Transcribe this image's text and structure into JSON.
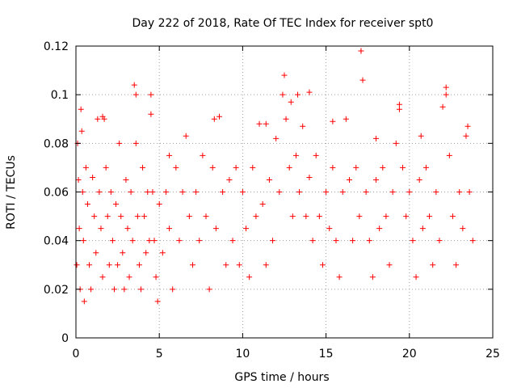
{
  "chart_data": {
    "type": "scatter",
    "title": "Day 222 of 2018, Rate Of TEC Index for receiver spt0",
    "xlabel": "GPS time / hours",
    "ylabel": "ROTI / TECUs",
    "xlim": [
      0,
      25
    ],
    "ylim": [
      0,
      0.12
    ],
    "xticks": [
      "0",
      "5",
      "10",
      "15",
      "20",
      "25"
    ],
    "yticks": [
      "0",
      "0.02",
      "0.04",
      "0.06",
      "0.08",
      "0.1",
      "0.12"
    ],
    "grid": true,
    "legend": "none",
    "marker": "+",
    "marker_color": "#ff0000",
    "series": [
      {
        "x": [
          0.05,
          0.1,
          0.15,
          0.2,
          0.25,
          0.3,
          0.35,
          0.4,
          0.45,
          0.5,
          0.6,
          0.7,
          0.8,
          0.9,
          1.0,
          1.1,
          1.2,
          1.3,
          1.4,
          1.5,
          1.6,
          1.7,
          1.8,
          1.9,
          2.0,
          2.1,
          2.2,
          2.3,
          2.4,
          2.5,
          2.6,
          2.7,
          2.8,
          2.9,
          3.0,
          3.1,
          3.2,
          3.3,
          3.4,
          3.5,
          3.6,
          3.7,
          3.8,
          3.9,
          4.0,
          4.1,
          4.2,
          4.3,
          4.4,
          4.5,
          4.6,
          4.7,
          4.8,
          4.9,
          5.0,
          5.2,
          5.4,
          5.6,
          5.8,
          6.0,
          6.2,
          6.4,
          6.6,
          6.8,
          7.0,
          7.2,
          7.4,
          7.6,
          7.8,
          8.0,
          8.2,
          8.4,
          8.6,
          8.8,
          9.0,
          9.2,
          9.4,
          9.6,
          9.8,
          10.0,
          10.2,
          10.4,
          10.6,
          10.8,
          11.0,
          11.2,
          11.4,
          11.6,
          11.8,
          12.0,
          12.2,
          12.4,
          12.6,
          12.8,
          13.0,
          13.2,
          13.4,
          13.6,
          13.8,
          14.0,
          14.2,
          14.4,
          14.6,
          14.8,
          15.0,
          15.2,
          15.4,
          15.6,
          15.8,
          16.0,
          16.2,
          16.4,
          16.6,
          16.8,
          17.0,
          17.1,
          17.2,
          17.4,
          17.6,
          17.8,
          18.0,
          18.2,
          18.4,
          18.6,
          18.8,
          19.0,
          19.2,
          19.4,
          19.6,
          19.8,
          20.0,
          20.2,
          20.4,
          20.6,
          20.8,
          21.0,
          21.2,
          21.4,
          21.6,
          21.8,
          22.0,
          22.2,
          22.4,
          22.6,
          22.8,
          23.0,
          23.2,
          23.4,
          23.6,
          23.8,
          3.6,
          4.5,
          12.5,
          12.9,
          13.3,
          14.0,
          17.1,
          19.4,
          22.2,
          1.6,
          5.6,
          8.3,
          11.4,
          15.4,
          18.0,
          20.7,
          23.5
        ],
        "y": [
          0.03,
          0.08,
          0.065,
          0.045,
          0.02,
          0.094,
          0.085,
          0.06,
          0.04,
          0.015,
          0.07,
          0.055,
          0.03,
          0.02,
          0.066,
          0.05,
          0.035,
          0.09,
          0.06,
          0.045,
          0.025,
          0.09,
          0.07,
          0.05,
          0.03,
          0.06,
          0.04,
          0.02,
          0.055,
          0.03,
          0.08,
          0.05,
          0.035,
          0.02,
          0.065,
          0.045,
          0.025,
          0.06,
          0.04,
          0.104,
          0.08,
          0.05,
          0.03,
          0.02,
          0.07,
          0.05,
          0.035,
          0.06,
          0.04,
          0.092,
          0.06,
          0.04,
          0.025,
          0.015,
          0.055,
          0.035,
          0.06,
          0.045,
          0.02,
          0.07,
          0.04,
          0.06,
          0.083,
          0.05,
          0.03,
          0.06,
          0.04,
          0.075,
          0.05,
          0.02,
          0.07,
          0.045,
          0.091,
          0.06,
          0.03,
          0.065,
          0.04,
          0.07,
          0.03,
          0.06,
          0.045,
          0.025,
          0.07,
          0.05,
          0.088,
          0.055,
          0.03,
          0.065,
          0.04,
          0.082,
          0.06,
          0.1,
          0.09,
          0.07,
          0.05,
          0.075,
          0.06,
          0.087,
          0.05,
          0.066,
          0.04,
          0.075,
          0.05,
          0.03,
          0.06,
          0.045,
          0.07,
          0.04,
          0.025,
          0.06,
          0.09,
          0.065,
          0.04,
          0.07,
          0.05,
          0.118,
          0.106,
          0.06,
          0.04,
          0.025,
          0.065,
          0.045,
          0.07,
          0.05,
          0.03,
          0.06,
          0.08,
          0.094,
          0.07,
          0.05,
          0.06,
          0.04,
          0.025,
          0.065,
          0.045,
          0.07,
          0.05,
          0.03,
          0.06,
          0.04,
          0.095,
          0.1,
          0.075,
          0.05,
          0.03,
          0.06,
          0.045,
          0.083,
          0.06,
          0.04,
          0.1,
          0.1,
          0.108,
          0.097,
          0.1,
          0.101,
          0.118,
          0.096,
          0.103,
          0.091,
          0.075,
          0.09,
          0.088,
          0.089,
          0.082,
          0.083,
          0.087
        ]
      }
    ]
  }
}
